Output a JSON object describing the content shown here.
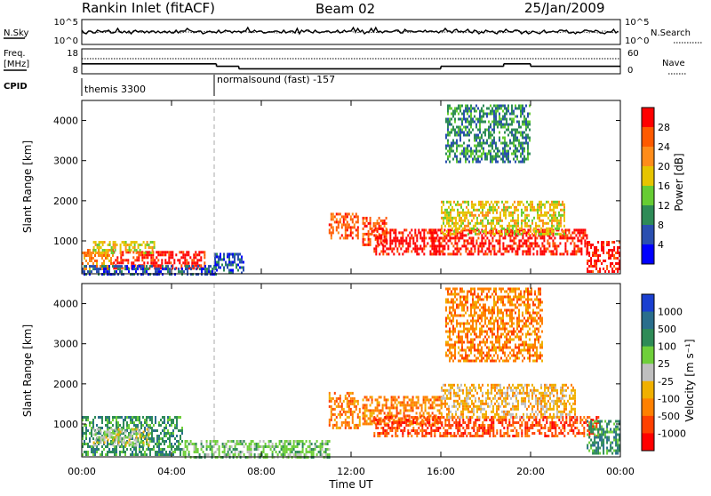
{
  "header": {
    "station": "Rankin Inlet (fitACF)",
    "beam": "Beam 02",
    "date": "25/Jan/2009"
  },
  "strip_nsky": {
    "left_label": "N.Sky",
    "right_label": "N.Search",
    "left_ticks": [
      "10^5",
      "10^0"
    ],
    "right_ticks": [
      "10^5",
      "10^0"
    ]
  },
  "strip_freq": {
    "left_label_line1": "Freq.",
    "left_label_line2": "[MHz]",
    "right_label": "Nave",
    "left_ticks": [
      "18",
      "8"
    ],
    "right_ticks": [
      "60",
      "0"
    ]
  },
  "cpid": {
    "label": "CPID",
    "programs": [
      {
        "name": "themis 3300",
        "start_hour": 0,
        "end_hour": 6
      },
      {
        "name": "normalsound (fast) -157",
        "start_hour": 6,
        "end_hour": 24
      }
    ]
  },
  "x_axis": {
    "label": "Time UT",
    "ticks": [
      "00:00",
      "04:00",
      "08:00",
      "12:00",
      "16:00",
      "20:00",
      "00:00"
    ]
  },
  "power_panel": {
    "ylabel": "Slant Range [km]",
    "yticks": [
      "1000",
      "2000",
      "3000",
      "4000"
    ],
    "colorbar_label": "Power [dB]",
    "colorbar_ticks": [
      "4",
      "8",
      "12",
      "16",
      "20",
      "24",
      "28"
    ],
    "colors": [
      "#0000ff",
      "#2a4fb0",
      "#2e8b57",
      "#66cc33",
      "#e6c400",
      "#ff8c1a",
      "#ff5a00",
      "#ff0000"
    ]
  },
  "velocity_panel": {
    "ylabel": "Slant Range [km]",
    "yticks": [
      "1000",
      "2000",
      "3000",
      "4000"
    ],
    "colorbar_label": "Velocity [m s⁻¹]",
    "colorbar_ticks": [
      "1000",
      "500",
      "100",
      "25",
      "-25",
      "-100",
      "-500",
      "-1000"
    ],
    "colors": [
      "#1a3fd0",
      "#2a6e8c",
      "#2e8b57",
      "#6fcf3a",
      "#bfbfbf",
      "#f0b000",
      "#ff8000",
      "#ff4000",
      "#ff0000"
    ]
  },
  "chart_data": {
    "type": "heatmap",
    "x_range_hours": [
      0,
      24
    ],
    "y_range_km": [
      180,
      4500
    ],
    "power_bands": [
      {
        "t0": 0.0,
        "t1": 1.4,
        "r0": 300,
        "r1": 800,
        "level": 5
      },
      {
        "t0": 1.4,
        "t1": 5.5,
        "r0": 350,
        "r1": 750,
        "level": 7
      },
      {
        "t0": 0.5,
        "t1": 3.2,
        "r0": 700,
        "r1": 1000,
        "level": 4
      },
      {
        "t0": 0.0,
        "t1": 6.0,
        "r0": 180,
        "r1": 400,
        "level": 1
      },
      {
        "t0": 5.9,
        "t1": 7.2,
        "r0": 200,
        "r1": 700,
        "level": 1
      },
      {
        "t0": 11.0,
        "t1": 12.3,
        "r0": 1100,
        "r1": 1700,
        "level": 6
      },
      {
        "t0": 12.5,
        "t1": 13.6,
        "r0": 900,
        "r1": 1600,
        "level": 6
      },
      {
        "t0": 13.0,
        "t1": 16.0,
        "r0": 700,
        "r1": 1300,
        "level": 7
      },
      {
        "t0": 15.5,
        "t1": 22.5,
        "r0": 700,
        "r1": 1300,
        "level": 7
      },
      {
        "t0": 16.0,
        "t1": 21.5,
        "r0": 1200,
        "r1": 2000,
        "level": 4
      },
      {
        "t0": 16.2,
        "t1": 20.0,
        "r0": 3000,
        "r1": 4400,
        "level": 2
      },
      {
        "t0": 22.5,
        "t1": 24.0,
        "r0": 250,
        "r1": 1000,
        "level": 7
      }
    ],
    "velocity_bands": [
      {
        "t0": 0.0,
        "t1": 4.5,
        "r0": 250,
        "r1": 1200,
        "level": 2
      },
      {
        "t0": 0.5,
        "t1": 3.0,
        "r0": 500,
        "r1": 900,
        "level": 4
      },
      {
        "t0": 4.5,
        "t1": 11.0,
        "r0": 180,
        "r1": 600,
        "level": 3
      },
      {
        "t0": 11.0,
        "t1": 12.4,
        "r0": 900,
        "r1": 1800,
        "level": 6
      },
      {
        "t0": 12.5,
        "t1": 16.0,
        "r0": 1000,
        "r1": 1700,
        "level": 6
      },
      {
        "t0": 13.0,
        "t1": 23.0,
        "r0": 700,
        "r1": 1200,
        "level": 7
      },
      {
        "t0": 16.0,
        "t1": 22.0,
        "r0": 1200,
        "r1": 2000,
        "level": 5
      },
      {
        "t0": 16.2,
        "t1": 20.5,
        "r0": 2600,
        "r1": 4400,
        "level": 6
      },
      {
        "t0": 22.5,
        "t1": 24.0,
        "r0": 300,
        "r1": 1100,
        "level": 2
      }
    ],
    "freq_mhz_steps": [
      {
        "t0": 0,
        "t1": 6,
        "value": 12
      },
      {
        "t0": 6,
        "t1": 7,
        "value": 11
      },
      {
        "t0": 7,
        "t1": 16,
        "value": 10
      },
      {
        "t0": 16,
        "t1": 18.8,
        "value": 11
      },
      {
        "t0": 18.8,
        "t1": 20,
        "value": 12
      },
      {
        "t0": 20,
        "t1": 24,
        "value": 11
      }
    ]
  }
}
